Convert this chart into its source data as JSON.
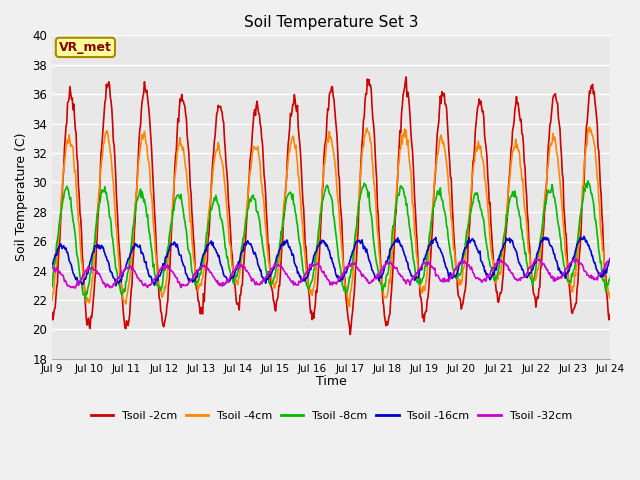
{
  "title": "Soil Temperature Set 3",
  "xlabel": "Time",
  "ylabel": "Soil Temperature (C)",
  "ylim": [
    18,
    40
  ],
  "days": 15,
  "bg_color": "#f0f0f0",
  "plot_bg_color": "#e8e8e8",
  "grid_color": "#ffffff",
  "series_labels": [
    "Tsoil -2cm",
    "Tsoil -4cm",
    "Tsoil -8cm",
    "Tsoil -16cm",
    "Tsoil -32cm"
  ],
  "series_colors": [
    "#cc0000",
    "#ff8800",
    "#00bb00",
    "#0000cc",
    "#cc00cc"
  ],
  "series_lw": [
    1.2,
    1.2,
    1.2,
    1.2,
    1.2
  ],
  "vr_met_text": "VR_met",
  "vr_met_facecolor": "#ffff99",
  "vr_met_edgecolor": "#aa8800",
  "vr_met_textcolor": "#880000",
  "x_tick_labels": [
    "Jul 9",
    "Jul 10",
    "Jul 11",
    "Jul 12",
    "Jul 13",
    "Jul 14",
    "Jul 15",
    "Jul 16",
    "Jul 17",
    "Jul 18",
    "Jul 19",
    "Jul 20",
    "Jul 21",
    "Jul 22",
    "Jul 23",
    "Jul 24"
  ],
  "yticks": [
    18,
    20,
    22,
    24,
    26,
    28,
    30,
    32,
    34,
    36,
    38,
    40
  ],
  "n_points": 720
}
